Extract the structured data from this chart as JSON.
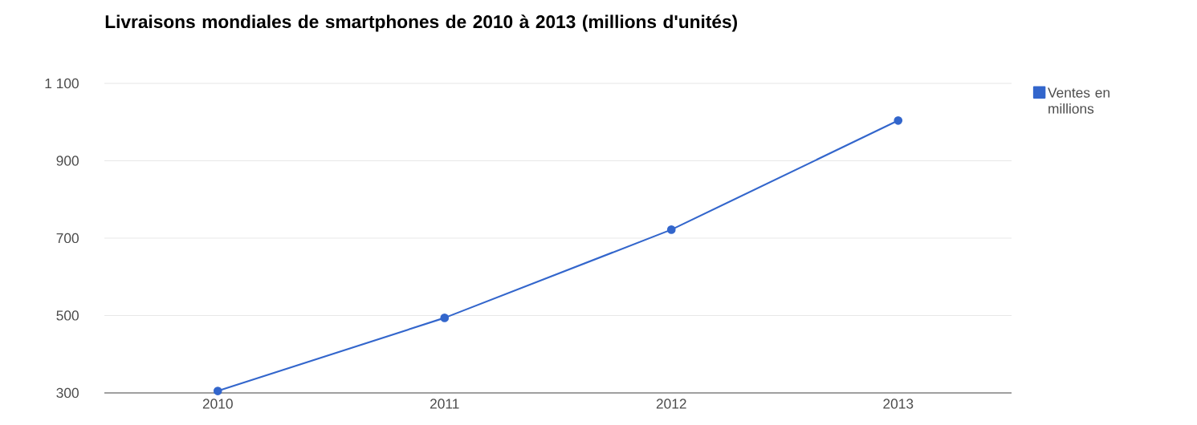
{
  "chart_data": {
    "type": "line",
    "title": "Livraisons mondiales de smartphones de 2010 à 2013 (millions d'unités)",
    "categories": [
      "2010",
      "2011",
      "2012",
      "2013"
    ],
    "series": [
      {
        "name": "Ventes en millions",
        "color": "#3366cc",
        "values": [
          305,
          494,
          722,
          1004
        ]
      }
    ],
    "ylim": [
      300,
      1100
    ],
    "yticks": [
      300,
      500,
      700,
      900,
      {
        "value": 1100,
        "label": "1 100"
      }
    ],
    "grid": "y",
    "legend": "top right",
    "marker": "circle",
    "line_style": "solid"
  }
}
